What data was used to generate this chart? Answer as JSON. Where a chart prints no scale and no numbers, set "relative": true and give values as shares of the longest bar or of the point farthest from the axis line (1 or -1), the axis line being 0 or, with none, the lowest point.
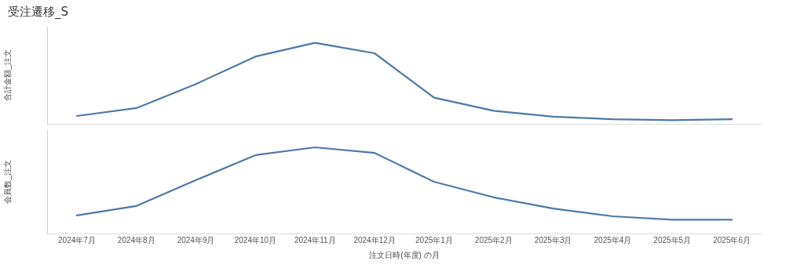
{
  "chart_data": [
    {
      "type": "line",
      "title": "受注遷移_S",
      "ylabel": "合計金額_注文",
      "relative": true,
      "tick_labels": false,
      "categories": [
        null,
        null,
        null,
        null,
        null,
        null,
        null,
        null,
        null,
        null,
        null,
        null
      ],
      "series": [
        {
          "color": "#4e79a7",
          "values": [
            0.097,
            0.194,
            0.492,
            0.831,
            1.0,
            0.871,
            0.323,
            0.161,
            0.089,
            0.056,
            0.044,
            0.056
          ]
        }
      ],
      "marker": "none",
      "legend": false
    },
    {
      "type": "line",
      "ylabel": "会員数_注文",
      "xlabel": "注文日時(年度) の月",
      "relative": true,
      "tick_labels": "x",
      "categories": [
        "2024年7月",
        "2024年8月",
        "2024年9月",
        "2024年10月",
        "2024年11月",
        "2024年12月",
        "2025年1月",
        "2025年2月",
        "2025年3月",
        "2025年4月",
        "2025年5月",
        "2025年6月"
      ],
      "series": [
        {
          "color": "#4e79a7",
          "values": [
            0.21,
            0.32,
            0.62,
            0.91,
            1.0,
            0.935,
            0.6,
            0.42,
            0.29,
            0.2,
            0.16,
            0.16
          ]
        }
      ],
      "marker": "none",
      "legend": false
    }
  ]
}
